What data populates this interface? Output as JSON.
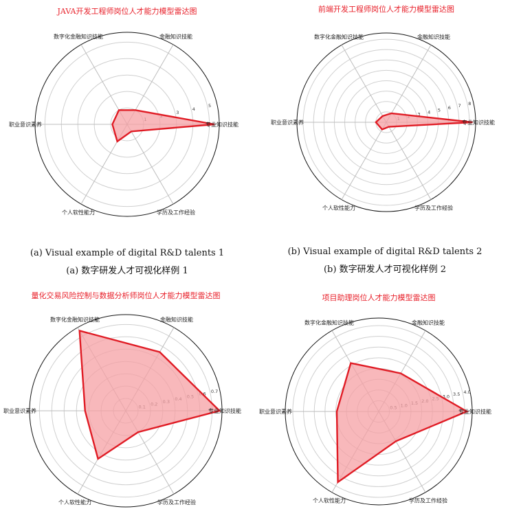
{
  "captions": [
    {
      "en": "(a)   Visual example of digital R&D talents 1",
      "zh": "(a)   数字研发人才可视化样例 1"
    },
    {
      "en": "(b)   Visual example of digital R&D talents 2",
      "zh": "(b)   数字研发人才可视化样例 2"
    }
  ],
  "colors": {
    "title": "#e8202a",
    "fill": "#f6a0a4",
    "line": "#e01b24",
    "grid": "#cfcfcf",
    "spoke": "#bdbdbd"
  },
  "chart_data": [
    {
      "type": "radar",
      "title": "JAVA开发工程师岗位人才能力模型雷达图",
      "axes": [
        "数字化金融知识技能",
        "金融知识技能",
        "专业知识技能",
        "学历及工作经验",
        "个人软性能力",
        "职业意识素养"
      ],
      "ticks": [
        "1",
        "2",
        "3",
        "4",
        "5"
      ],
      "rmax": 5.6,
      "values": [
        1.0,
        1.0,
        5.3,
        0.5,
        1.2,
        0.9
      ],
      "grid": true
    },
    {
      "type": "radar",
      "title": "前端开发工程师岗位人才能力模型雷达图",
      "axes": [
        "数字化金融知识技能",
        "金融知识技能",
        "专业知识技能",
        "学历及工作经验",
        "个人软性能力",
        "职业意识素养"
      ],
      "ticks": [
        "1",
        "2",
        "3",
        "4",
        "5",
        "6",
        "7",
        "8"
      ],
      "rmax": 8.6,
      "values": [
        0.7,
        1.0,
        8.3,
        0.5,
        0.8,
        1.0
      ],
      "grid": true
    },
    {
      "type": "radar",
      "title": "量化交易风险控制与数据分析师岗位人才能力模型雷达图",
      "axes": [
        "数字化金融知识技能",
        "金融知识技能",
        "专业知识技能",
        "学历及工作经验",
        "个人软性能力",
        "职业意识素养"
      ],
      "ticks": [
        "0.1",
        "0.2",
        "0.3",
        "0.4",
        "0.5",
        "0.6",
        "0.7"
      ],
      "rmax": 0.78,
      "values": [
        0.75,
        0.55,
        0.76,
        0.2,
        0.45,
        0.33
      ],
      "grid": true
    },
    {
      "type": "radar",
      "title": "项目助理岗位人才能力模型雷达图",
      "axes": [
        "数字化金融知识技能",
        "金融知识技能",
        "专业知识技能",
        "学历及工作经验",
        "个人软性能力",
        "职业意识素养"
      ],
      "ticks": [
        "0.5",
        "1.0",
        "1.5",
        "2.0",
        "2.5",
        "3.0",
        "3.5",
        "4.0"
      ],
      "rmax": 4.35,
      "values": [
        2.6,
        2.05,
        4.1,
        1.6,
        3.8,
        1.95
      ],
      "grid": true
    }
  ]
}
